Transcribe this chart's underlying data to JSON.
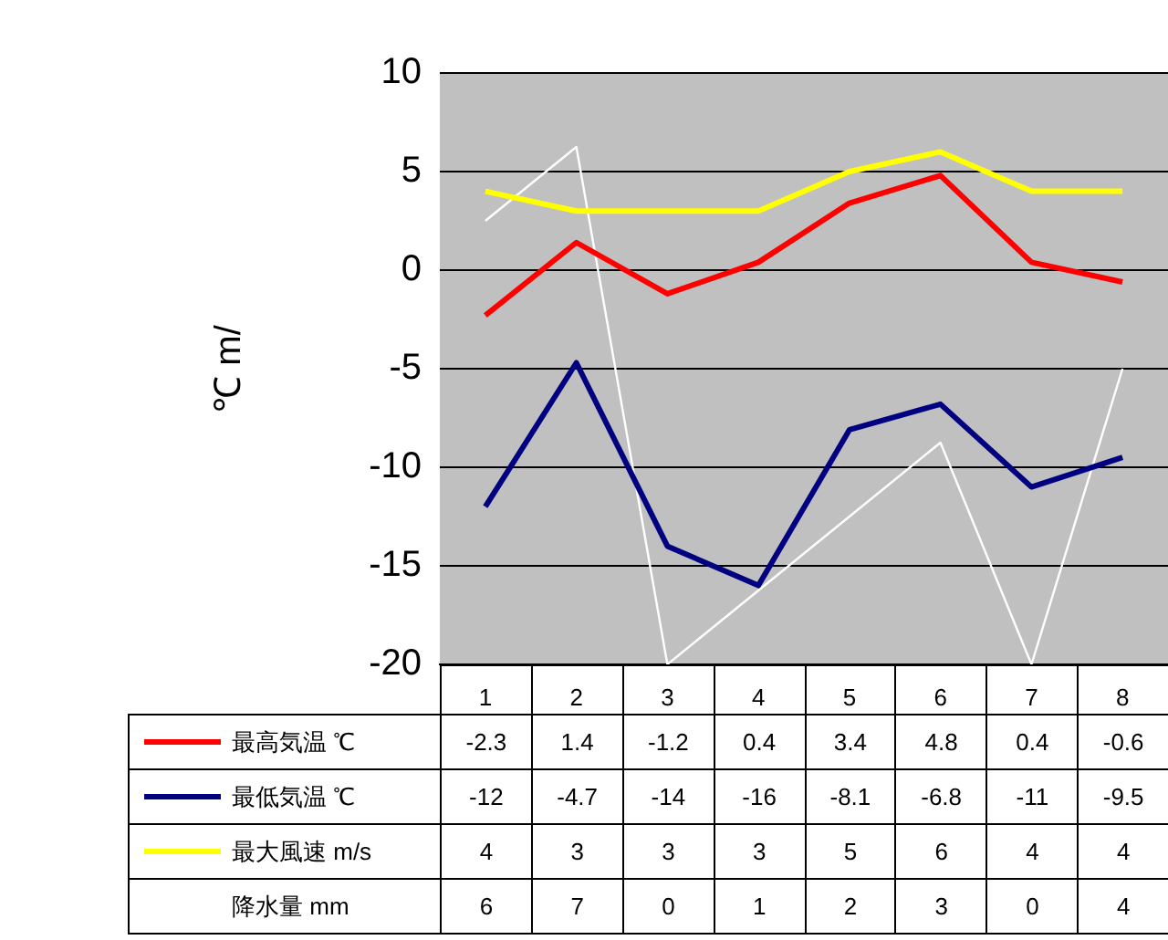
{
  "chart_data": {
    "type": "line",
    "ylabel": "℃ m/",
    "categories": [
      "1",
      "2",
      "3",
      "4",
      "5",
      "6",
      "7",
      "8"
    ],
    "series": [
      {
        "name": "最高気温 ℃",
        "color": "#ff0000",
        "values": [
          -2.3,
          1.4,
          -1.2,
          0.4,
          3.4,
          4.8,
          0.4,
          -0.6
        ]
      },
      {
        "name": "最低気温 ℃",
        "color": "#000080",
        "values": [
          -12,
          -4.7,
          -14,
          -16,
          -8.1,
          -6.8,
          -11,
          -9.5
        ]
      },
      {
        "name": "最大風速 m/s",
        "color": "#ffff00",
        "values": [
          4,
          3,
          3,
          3,
          5,
          6,
          4,
          4
        ]
      },
      {
        "name": "降水量 mm",
        "color": "#ffffff",
        "values": [
          6,
          7,
          0,
          1,
          2,
          3,
          0,
          4
        ],
        "axis": "y2"
      }
    ],
    "ylim": [
      -20,
      10
    ],
    "yticks": [
      -20,
      -15,
      -10,
      -5,
      0,
      5,
      10
    ],
    "y2lim": [
      0,
      8
    ],
    "grid": "y",
    "legend": "bottom",
    "data_labels": true,
    "marker": "none",
    "line_style": "solid"
  }
}
